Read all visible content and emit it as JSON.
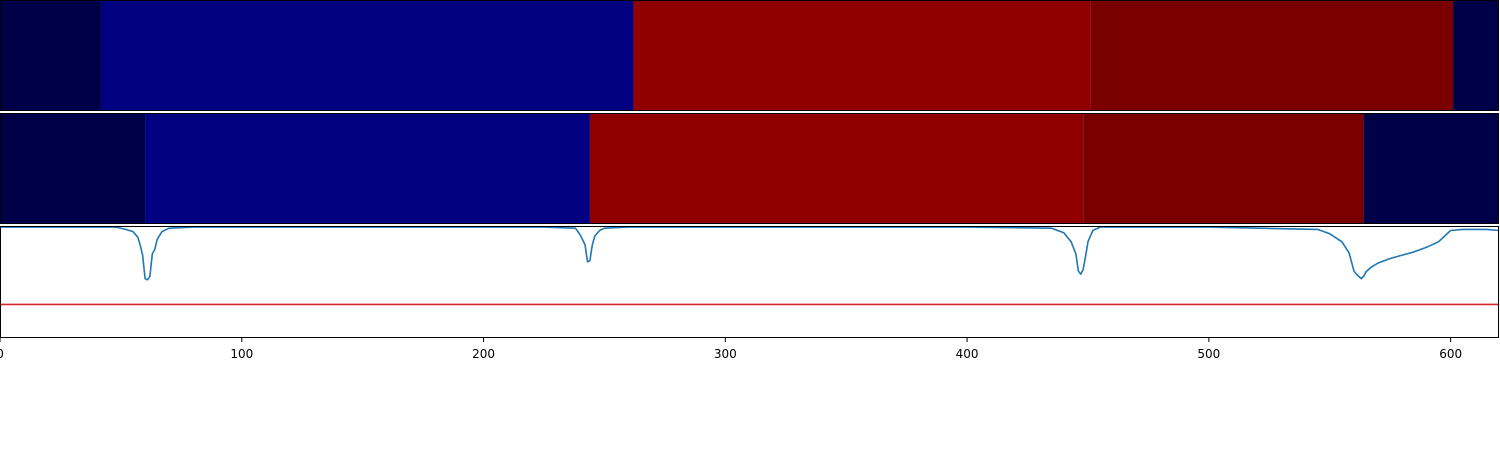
{
  "chart_data": {
    "type": "heatmap",
    "xlim": [
      0,
      620
    ],
    "xticks": [
      0,
      100,
      200,
      300,
      400,
      500,
      600
    ],
    "colors": {
      "dark_navy": "#000048",
      "navy": "#000080",
      "red": "#900000",
      "dark_red": "#7a0000",
      "signal_line": "#1f77b4",
      "threshold_line": "#d62728"
    },
    "segment_rows": [
      {
        "segments": [
          {
            "start": 0,
            "end": 42,
            "color_key": "dark_navy"
          },
          {
            "start": 42,
            "end": 262,
            "color_key": "navy"
          },
          {
            "start": 262,
            "end": 451,
            "color_key": "red"
          },
          {
            "start": 451,
            "end": 601,
            "color_key": "dark_red"
          },
          {
            "start": 601,
            "end": 620,
            "color_key": "dark_navy"
          }
        ]
      },
      {
        "segments": [
          {
            "start": 0,
            "end": 60,
            "color_key": "dark_navy"
          },
          {
            "start": 60,
            "end": 244,
            "color_key": "navy"
          },
          {
            "start": 244,
            "end": 448,
            "color_key": "red"
          },
          {
            "start": 448,
            "end": 564,
            "color_key": "dark_red"
          },
          {
            "start": 564,
            "end": 620,
            "color_key": "dark_navy"
          }
        ]
      }
    ],
    "line_panel": {
      "ylim": [
        0,
        1
      ],
      "threshold": 0.3,
      "signal": {
        "x": [
          0,
          48,
          52,
          55,
          57,
          58,
          59,
          60,
          61,
          62,
          63,
          64,
          65,
          67,
          70,
          80,
          100,
          200,
          225,
          238,
          240,
          242,
          243,
          244,
          245,
          246,
          248,
          250,
          260,
          300,
          400,
          435,
          440,
          443,
          445,
          446,
          447,
          448,
          449,
          450,
          452,
          455,
          460,
          500,
          545,
          550,
          555,
          558,
          560,
          561,
          562,
          563,
          564,
          565,
          567,
          570,
          575,
          580,
          585,
          590,
          595,
          600,
          605,
          610,
          615,
          620
        ],
        "y": [
          0.99,
          0.99,
          0.97,
          0.95,
          0.9,
          0.83,
          0.74,
          0.53,
          0.52,
          0.55,
          0.75,
          0.79,
          0.88,
          0.95,
          0.98,
          0.99,
          0.99,
          0.99,
          0.99,
          0.98,
          0.92,
          0.83,
          0.68,
          0.69,
          0.83,
          0.91,
          0.96,
          0.98,
          0.99,
          0.99,
          0.99,
          0.98,
          0.94,
          0.86,
          0.75,
          0.6,
          0.57,
          0.61,
          0.73,
          0.86,
          0.96,
          0.99,
          0.99,
          0.99,
          0.97,
          0.93,
          0.86,
          0.76,
          0.6,
          0.57,
          0.55,
          0.53,
          0.55,
          0.59,
          0.63,
          0.67,
          0.71,
          0.74,
          0.77,
          0.81,
          0.86,
          0.96,
          0.97,
          0.97,
          0.97,
          0.96
        ]
      }
    }
  }
}
